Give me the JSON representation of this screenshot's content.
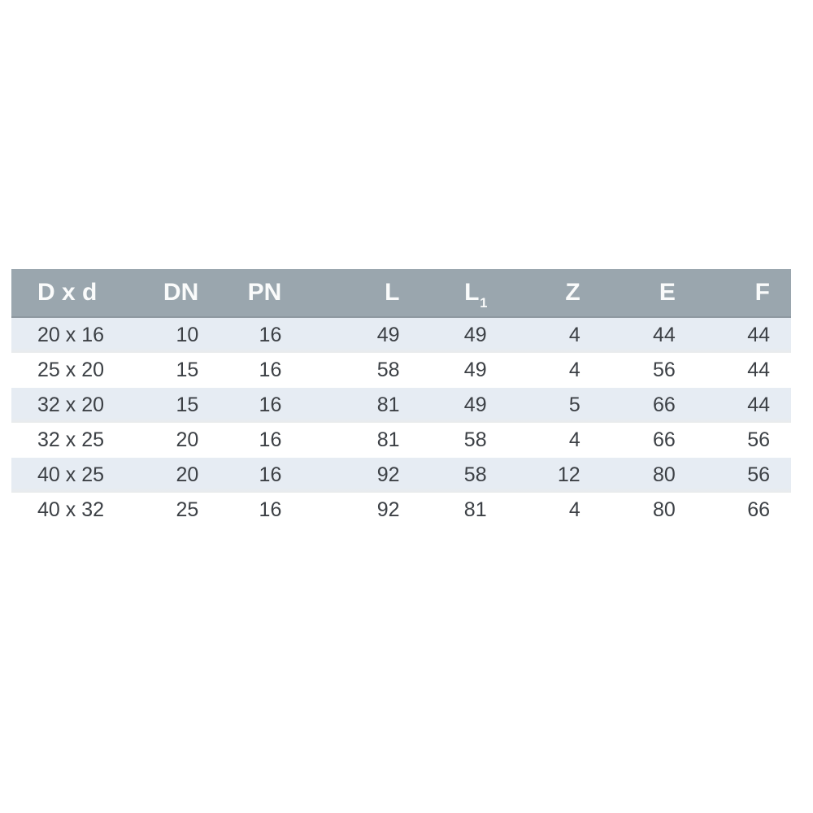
{
  "colors": {
    "header_bg": "#9aa6ae",
    "header_edge": "#8d98a0",
    "header_text": "#fafbfb",
    "row_alt_bg": "#e6ecf3",
    "row_bg": "#ffffff",
    "text": "#3c4045"
  },
  "chart_data": {
    "type": "table",
    "title": "",
    "columns": [
      {
        "id": "dxd",
        "label": "D x d",
        "align": "left"
      },
      {
        "id": "dn",
        "label": "DN",
        "align": "right"
      },
      {
        "id": "pn",
        "label": "PN",
        "align": "right"
      },
      {
        "id": "l",
        "label": "L",
        "align": "right"
      },
      {
        "id": "l1",
        "label": "L",
        "subscript": "1",
        "align": "right"
      },
      {
        "id": "z",
        "label": "Z",
        "align": "right"
      },
      {
        "id": "e",
        "label": "E",
        "align": "right"
      },
      {
        "id": "f",
        "label": "F",
        "align": "right"
      }
    ],
    "rows": [
      {
        "dxd": "20 x 16",
        "dn": "10",
        "pn": "16",
        "l": "49",
        "l1": "49",
        "z": "4",
        "e": "44",
        "f": "44"
      },
      {
        "dxd": "25 x 20",
        "dn": "15",
        "pn": "16",
        "l": "58",
        "l1": "49",
        "z": "4",
        "e": "56",
        "f": "44"
      },
      {
        "dxd": "32 x 20",
        "dn": "15",
        "pn": "16",
        "l": "81",
        "l1": "49",
        "z": "5",
        "e": "66",
        "f": "44"
      },
      {
        "dxd": "32 x 25",
        "dn": "20",
        "pn": "16",
        "l": "81",
        "l1": "58",
        "z": "4",
        "e": "66",
        "f": "56"
      },
      {
        "dxd": "40 x 25",
        "dn": "20",
        "pn": "16",
        "l": "92",
        "l1": "58",
        "z": "12",
        "e": "80",
        "f": "56"
      },
      {
        "dxd": "40 x 32",
        "dn": "25",
        "pn": "16",
        "l": "92",
        "l1": "81",
        "z": "4",
        "e": "80",
        "f": "66"
      }
    ],
    "layout": {
      "striping": "odd-rows-shaded",
      "numeric_alignment": "right",
      "grid": "none"
    }
  }
}
